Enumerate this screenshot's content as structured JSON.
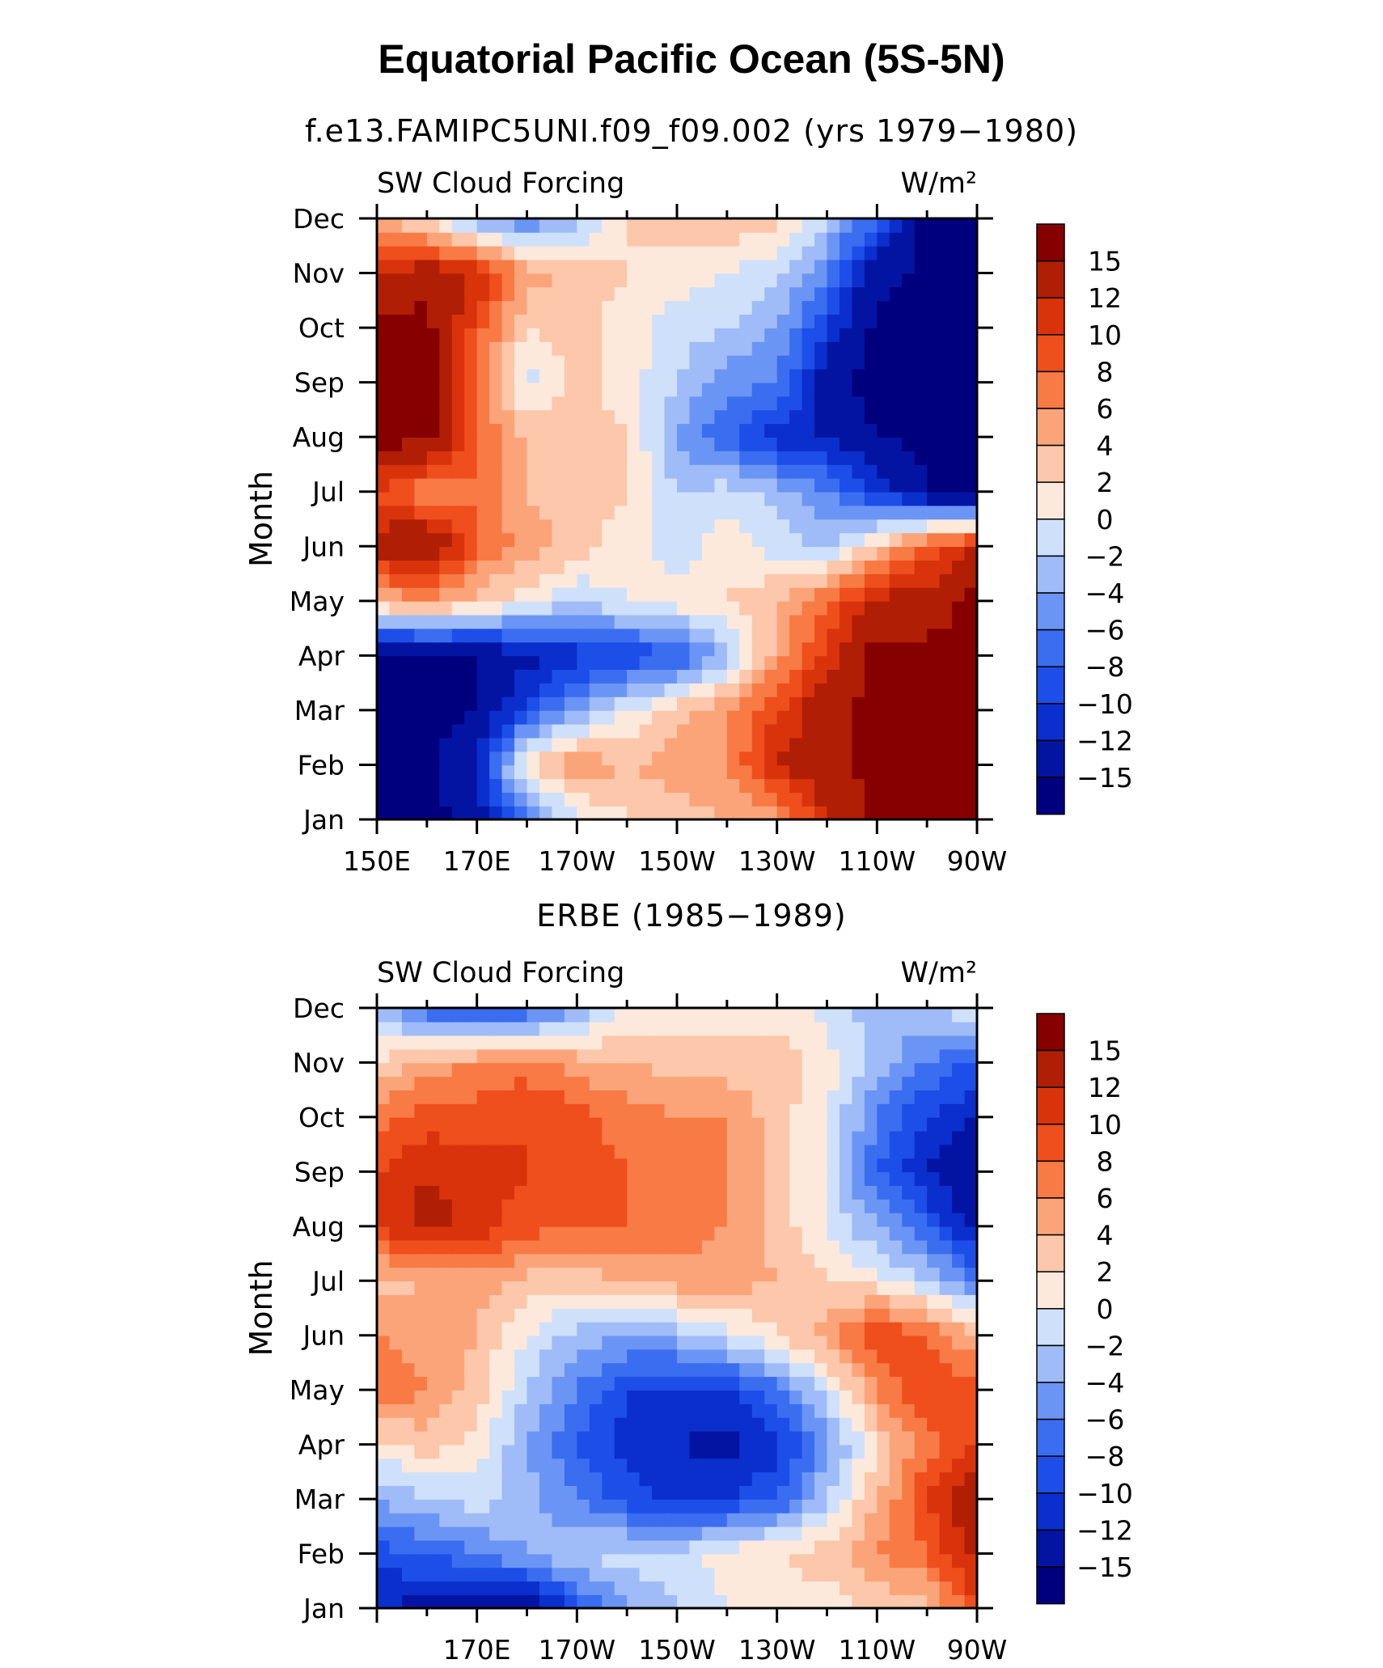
{
  "title": "Equatorial Pacific Ocean (5S-5N)",
  "panels": [
    {
      "subtitle": "f.e13.FAMIPC5UNI.f09_f09.002 (yrs 1979−1980)",
      "field": "SW Cloud Forcing",
      "units": "W/m²",
      "ylabel": "Month"
    },
    {
      "subtitle": "ERBE (1985−1989)",
      "field": "SW Cloud Forcing",
      "units": "W/m²",
      "ylabel": "Month"
    }
  ],
  "colors": {
    "levels": [
      "#00007f",
      "#0414a2",
      "#0a2fcc",
      "#1d4ee8",
      "#3b6df0",
      "#6b95f4",
      "#9fbcf8",
      "#cfe0fb",
      "#fde9dc",
      "#fcc7aa",
      "#fba47a",
      "#f87a45",
      "#ef4e1d",
      "#d9330c",
      "#b01e05",
      "#860000"
    ]
  },
  "chart_data": [
    {
      "type": "heatmap",
      "title": "f.e13.FAMIPC5UNI.f09_f09.002 (yrs 1979−1980)",
      "xlabel": "",
      "ylabel": "Month",
      "x": [
        150,
        160,
        170,
        180,
        190,
        200,
        210,
        220,
        230,
        240,
        250,
        260,
        270
      ],
      "x_tick_labels": [
        "150E",
        "170E",
        "170W",
        "150W",
        "130W",
        "110W",
        "90W"
      ],
      "y": [
        "Jan",
        "Feb",
        "Mar",
        "Apr",
        "May",
        "Jun",
        "Jul",
        "Aug",
        "Sep",
        "Oct",
        "Nov",
        "Dec"
      ],
      "colorbar_labels": [
        "15",
        "12",
        "10",
        "8",
        "6",
        "4",
        "2",
        "0",
        "−2",
        "−4",
        "−6",
        "−8",
        "−10",
        "−12",
        "−15"
      ],
      "values": [
        [
          -16,
          -16,
          -14,
          -6,
          -1,
          2,
          3,
          4,
          5,
          12,
          16,
          16,
          16
        ],
        [
          -16,
          -16,
          -12,
          2,
          6,
          4,
          5,
          6,
          12,
          14,
          16,
          16,
          16
        ],
        [
          -16,
          -16,
          -15,
          -9,
          -4,
          0,
          3,
          6,
          10,
          14,
          16,
          16,
          16
        ],
        [
          -16,
          -16,
          -15,
          -13,
          -11,
          -10,
          -8,
          -3,
          5,
          11,
          16,
          16,
          16
        ],
        [
          4,
          6,
          3,
          1,
          -2,
          0,
          1,
          2,
          4,
          8,
          13,
          13,
          16
        ],
        [
          13,
          16,
          8,
          5,
          3,
          1,
          -1,
          1,
          -1,
          -2,
          3,
          9,
          12
        ],
        [
          10,
          6,
          8,
          4,
          3,
          2,
          -2,
          -1,
          -3,
          -6,
          -10,
          -15,
          -16
        ],
        [
          16,
          16,
          8,
          4,
          3,
          2,
          -4,
          -8,
          -11,
          -12,
          -15,
          -16,
          -16
        ],
        [
          16,
          16,
          8,
          -1,
          3,
          1,
          -2,
          -5,
          -6,
          -14,
          -16,
          -16,
          -16
        ],
        [
          16,
          16,
          9,
          2,
          3,
          1,
          -1,
          -2,
          -4,
          -10,
          -16,
          -16,
          -16
        ],
        [
          12,
          14,
          12,
          5,
          3,
          2,
          1,
          0,
          -2,
          -6,
          -14,
          -16,
          -16
        ],
        [
          5,
          1,
          -4,
          -6,
          -3,
          2,
          3,
          4,
          3,
          -2,
          -8,
          -16,
          -16
        ]
      ]
    },
    {
      "type": "heatmap",
      "title": "ERBE (1985−1989)",
      "xlabel": "",
      "ylabel": "Month",
      "x": [
        150,
        160,
        170,
        180,
        190,
        200,
        210,
        220,
        230,
        240,
        250,
        260,
        270
      ],
      "x_tick_labels": [
        "170E",
        "170W",
        "150W",
        "130W",
        "110W",
        "90W"
      ],
      "y": [
        "Jan",
        "Feb",
        "Mar",
        "Apr",
        "May",
        "Jun",
        "Jul",
        "Aug",
        "Sep",
        "Oct",
        "Nov",
        "Dec"
      ],
      "colorbar_labels": [
        "15",
        "12",
        "10",
        "8",
        "6",
        "4",
        "2",
        "0",
        "−2",
        "−4",
        "−6",
        "−8",
        "−10",
        "−12",
        "−15"
      ],
      "values": [
        [
          -12,
          -13,
          -14,
          -15,
          -9,
          -4,
          -2,
          0,
          1,
          1,
          2,
          3,
          10
        ],
        [
          -9,
          -8,
          -6,
          -4,
          -2,
          -1,
          -1,
          1,
          2,
          3,
          6,
          8,
          13
        ],
        [
          -4,
          -2,
          -1,
          -3,
          -6,
          -9,
          -11,
          -10,
          -8,
          -2,
          4,
          10,
          15
        ],
        [
          1,
          3,
          1,
          -4,
          -8,
          -11,
          -12,
          -13,
          -11,
          -5,
          2,
          7,
          10
        ],
        [
          8,
          6,
          3,
          -2,
          -6,
          -10,
          -11,
          -10,
          -7,
          -1,
          6,
          10,
          9
        ],
        [
          6,
          5,
          4,
          0,
          -3,
          -4,
          -3,
          -1,
          2,
          5,
          10,
          8,
          4
        ],
        [
          3,
          4,
          5,
          3,
          3,
          4,
          5,
          5,
          4,
          2,
          1,
          -2,
          -6
        ],
        [
          10,
          13,
          11,
          9,
          8,
          8,
          7,
          6,
          3,
          0,
          -4,
          -8,
          -13
        ],
        [
          10,
          12,
          11,
          10,
          9,
          8,
          7,
          6,
          3,
          0,
          -8,
          -12,
          -15
        ],
        [
          7,
          9,
          9,
          10,
          9,
          7,
          6,
          6,
          3,
          0,
          -6,
          -10,
          -12
        ],
        [
          2,
          5,
          6,
          7,
          5,
          4,
          3,
          3,
          3,
          1,
          -3,
          -6,
          -9
        ],
        [
          -3,
          -8,
          -10,
          -8,
          -4,
          0,
          1,
          1,
          1,
          -1,
          -3,
          -3,
          1
        ]
      ]
    }
  ]
}
